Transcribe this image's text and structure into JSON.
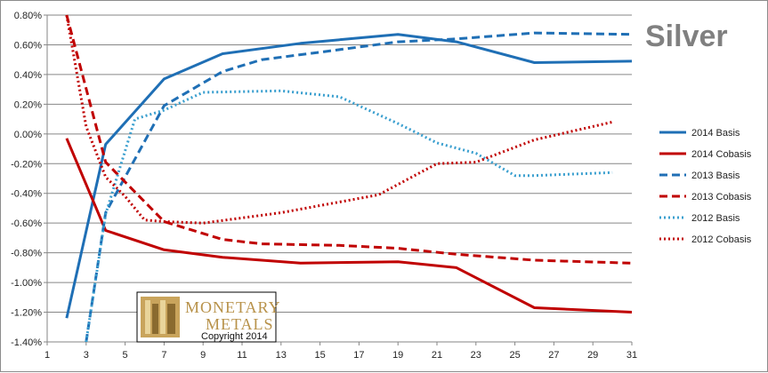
{
  "chart_data": {
    "type": "line",
    "title": "Silver",
    "xlabel": "",
    "ylabel": "",
    "xlim": [
      1,
      31
    ],
    "ylim": [
      -1.4,
      0.8
    ],
    "x_ticks": [
      "1",
      "3",
      "5",
      "7",
      "9",
      "11",
      "13",
      "15",
      "17",
      "19",
      "21",
      "23",
      "25",
      "27",
      "29",
      "31"
    ],
    "y_ticks": [
      "0.80%",
      "0.60%",
      "0.40%",
      "0.20%",
      "0.00%",
      "-0.20%",
      "-0.40%",
      "-0.60%",
      "-0.80%",
      "-1.00%",
      "-1.20%",
      "-1.40%"
    ],
    "grid": "horizontal",
    "legend_position": "right",
    "series": [
      {
        "name": "2014 Basis",
        "color": "#1f6fb5",
        "style": "solid",
        "x": [
          2,
          4,
          7,
          10,
          14,
          19,
          22,
          26,
          31
        ],
        "y": [
          -1.24,
          -0.07,
          0.37,
          0.54,
          0.61,
          0.67,
          0.62,
          0.48,
          0.49
        ]
      },
      {
        "name": "2014 Cobasis",
        "color": "#c00000",
        "style": "solid",
        "x": [
          2,
          4,
          7,
          10,
          14,
          19,
          22,
          26,
          31
        ],
        "y": [
          -0.03,
          -0.65,
          -0.78,
          -0.83,
          -0.87,
          -0.86,
          -0.9,
          -1.17,
          -1.2
        ]
      },
      {
        "name": "2013 Basis",
        "color": "#1f6fb5",
        "style": "dashed",
        "x": [
          3,
          4,
          7,
          10,
          12,
          15,
          19,
          22,
          26,
          31
        ],
        "y": [
          -1.4,
          -0.53,
          0.19,
          0.42,
          0.5,
          0.55,
          0.62,
          0.64,
          0.68,
          0.67
        ]
      },
      {
        "name": "2013 Cobasis",
        "color": "#c00000",
        "style": "dashed",
        "x": [
          2,
          4,
          7,
          10,
          12,
          16,
          19,
          22,
          26,
          31
        ],
        "y": [
          0.8,
          -0.19,
          -0.59,
          -0.71,
          -0.74,
          -0.75,
          -0.77,
          -0.81,
          -0.85,
          -0.87
        ]
      },
      {
        "name": "2012 Basis",
        "color": "#3a9fcf",
        "style": "dotted",
        "x": [
          3,
          4,
          5.5,
          7,
          9,
          13,
          16,
          19,
          21,
          23,
          25,
          26,
          30
        ],
        "y": [
          -1.4,
          -0.54,
          0.1,
          0.16,
          0.28,
          0.29,
          0.25,
          0.07,
          -0.06,
          -0.13,
          -0.28,
          -0.28,
          -0.26
        ]
      },
      {
        "name": "2012 Cobasis",
        "color": "#c00000",
        "style": "dotted",
        "x": [
          2,
          3,
          4,
          5,
          6,
          7,
          9,
          13,
          18,
          21,
          23,
          26,
          30
        ],
        "y": [
          0.8,
          0.05,
          -0.29,
          -0.42,
          -0.58,
          -0.59,
          -0.6,
          -0.53,
          -0.41,
          -0.2,
          -0.19,
          -0.04,
          0.08
        ]
      }
    ]
  },
  "watermark": {
    "brand_line1": "MONETARY",
    "brand_line2": "METALS",
    "copyright": "Copyright 2014",
    "logo_icon": "monetary-metals-logo-icon"
  }
}
